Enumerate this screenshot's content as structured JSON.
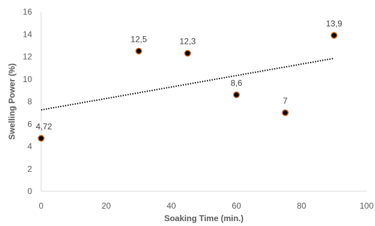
{
  "chart_data": {
    "type": "scatter",
    "title": "",
    "xlabel": "Soaking Time (min.)",
    "ylabel": "Swelling Power (%)",
    "xlim": [
      0,
      100
    ],
    "ylim": [
      0,
      16
    ],
    "x_ticks": [
      "0",
      "20",
      "40",
      "60",
      "80",
      "100"
    ],
    "y_ticks": [
      "0",
      "2",
      "4",
      "6",
      "8",
      "10",
      "12",
      "14",
      "16"
    ],
    "grid": false,
    "legend": "none",
    "series": [
      {
        "points": [
          {
            "x": 0,
            "y": 4.72,
            "label": "4,72"
          },
          {
            "x": 30,
            "y": 12.5,
            "label": "12,5"
          },
          {
            "x": 45,
            "y": 12.3,
            "label": "12,3"
          },
          {
            "x": 60,
            "y": 8.6,
            "label": "8,6"
          },
          {
            "x": 75,
            "y": 7,
            "label": "7"
          },
          {
            "x": 90,
            "y": 13.9,
            "label": "13,9"
          }
        ],
        "marker_fill": "#000000",
        "marker_stroke": "#c55a11"
      }
    ],
    "trendline": {
      "type": "linear",
      "x_range": [
        0,
        90
      ],
      "y_start": 7.25,
      "y_end": 11.85,
      "style": "dotted",
      "color": "#000000"
    },
    "axis_color": "#d9d9d9",
    "text_color": "#595959"
  }
}
